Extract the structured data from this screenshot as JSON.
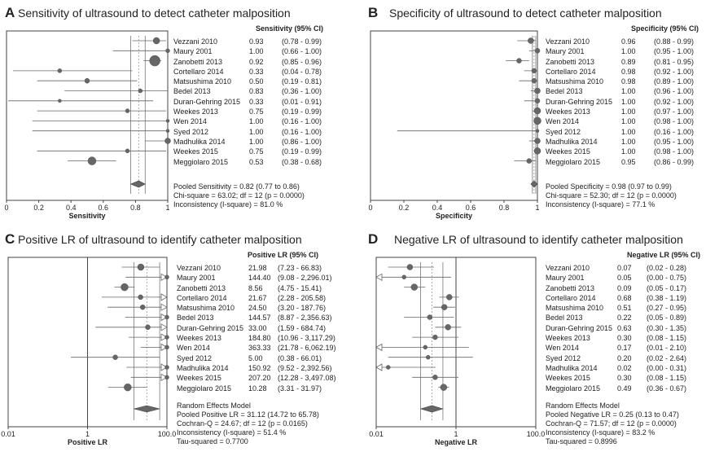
{
  "chart_data": [
    {
      "type": "forest",
      "letter": "A",
      "title": "Sensitivity of ultrasound to detect catheter malposition",
      "scale": "linear",
      "xlim": [
        0,
        1
      ],
      "xticks": [
        "0",
        "0.2",
        "0.4",
        "0.6",
        "0.8",
        "1"
      ],
      "xlabel": "Sensitivity",
      "column_header": "Sensitivity (95% CI)",
      "studies": [
        {
          "name": "Vezzani 2010",
          "value": 0.93,
          "lo": 0.78,
          "hi": 0.99,
          "est": "0.93",
          "ci": "(0.78 - 0.99)",
          "weight": 4
        },
        {
          "name": "Maury 2001",
          "value": 1.0,
          "lo": 0.66,
          "hi": 1.0,
          "est": "1.00",
          "ci": "(0.66 - 1.00)",
          "weight": 2.5
        },
        {
          "name": "Zanobetti 2013",
          "value": 0.92,
          "lo": 0.85,
          "hi": 0.96,
          "est": "0.92",
          "ci": "(0.85 - 0.96)",
          "weight": 6.5
        },
        {
          "name": "Cortellaro 2014",
          "value": 0.33,
          "lo": 0.04,
          "hi": 0.78,
          "est": "0.33",
          "ci": "(0.04 - 0.78)",
          "weight": 2.5
        },
        {
          "name": "Matsushima 2010",
          "value": 0.5,
          "lo": 0.19,
          "hi": 0.81,
          "est": "0.50",
          "ci": "(0.19 - 0.81)",
          "weight": 3
        },
        {
          "name": "Bedel 2013",
          "value": 0.83,
          "lo": 0.36,
          "hi": 1.0,
          "est": "0.83",
          "ci": "(0.36 - 1.00)",
          "weight": 2.5
        },
        {
          "name": "Duran-Gehring 2015",
          "value": 0.33,
          "lo": 0.01,
          "hi": 0.91,
          "est": "0.33",
          "ci": "(0.01 - 0.91)",
          "weight": 2
        },
        {
          "name": "Weekes 2013",
          "value": 0.75,
          "lo": 0.19,
          "hi": 0.99,
          "est": "0.75",
          "ci": "(0.19 - 0.99)",
          "weight": 2.5
        },
        {
          "name": "Wen 2014",
          "value": 1.0,
          "lo": 0.16,
          "hi": 1.0,
          "est": "1.00",
          "ci": "(0.16 - 1.00)",
          "weight": 2
        },
        {
          "name": "Syed 2012",
          "value": 1.0,
          "lo": 0.16,
          "hi": 1.0,
          "est": "1.00",
          "ci": "(0.16 - 1.00)",
          "weight": 2
        },
        {
          "name": "Madhulika 2014",
          "value": 1.0,
          "lo": 0.86,
          "hi": 1.0,
          "est": "1.00",
          "ci": "(0.86 - 1.00)",
          "weight": 3.5
        },
        {
          "name": "Weekes 2015",
          "value": 0.75,
          "lo": 0.19,
          "hi": 0.99,
          "est": "0.75",
          "ci": "(0.19 - 0.99)",
          "weight": 2.5
        },
        {
          "name": "Meggiolaro 2015",
          "value": 0.53,
          "lo": 0.38,
          "hi": 0.68,
          "est": "0.53",
          "ci": "(0.38 - 0.68)",
          "weight": 5
        }
      ],
      "pooled": {
        "value": 0.82,
        "lo": 0.77,
        "hi": 0.86
      },
      "stats_lines": [
        "Pooled Sensitivity = 0.82 (0.77 to 0.86)",
        "Chi-square = 63.02; df = 12 (p = 0.0000)",
        "Inconsistency (I-square) = 81.0 %"
      ]
    },
    {
      "type": "forest",
      "letter": "B",
      "title": "Specificity of ultrasound to detect catheter malposition",
      "scale": "linear",
      "xlim": [
        0,
        1
      ],
      "xticks": [
        "0",
        "0.2",
        "0.4",
        "0.6",
        "0.8",
        "1"
      ],
      "xlabel": "Specificity",
      "column_header": "Specificity (95% CI)",
      "studies": [
        {
          "name": "Vezzani 2010",
          "value": 0.96,
          "lo": 0.88,
          "hi": 0.99,
          "est": "0.96",
          "ci": "(0.88 - 0.99)",
          "weight": 3.5
        },
        {
          "name": "Maury 2001",
          "value": 1.0,
          "lo": 0.95,
          "hi": 1.0,
          "est": "1.00",
          "ci": "(0.95 - 1.00)",
          "weight": 3
        },
        {
          "name": "Zanobetti 2013",
          "value": 0.89,
          "lo": 0.81,
          "hi": 0.95,
          "est": "0.89",
          "ci": "(0.81 - 0.95)",
          "weight": 3
        },
        {
          "name": "Cortellaro 2014",
          "value": 0.98,
          "lo": 0.92,
          "hi": 1.0,
          "est": "0.98",
          "ci": "(0.92 - 1.00)",
          "weight": 3
        },
        {
          "name": "Matsushima 2010",
          "value": 0.98,
          "lo": 0.89,
          "hi": 1.0,
          "est": "0.98",
          "ci": "(0.89 - 1.00)",
          "weight": 3
        },
        {
          "name": "Bedel 2013",
          "value": 1.0,
          "lo": 0.96,
          "hi": 1.0,
          "est": "1.00",
          "ci": "(0.96 - 1.00)",
          "weight": 3.5
        },
        {
          "name": "Duran-Gehring 2015",
          "value": 1.0,
          "lo": 0.92,
          "hi": 1.0,
          "est": "1.00",
          "ci": "(0.92 - 1.00)",
          "weight": 3
        },
        {
          "name": "Weekes 2013",
          "value": 1.0,
          "lo": 0.97,
          "hi": 1.0,
          "est": "1.00",
          "ci": "(0.97 - 1.00)",
          "weight": 4
        },
        {
          "name": "Wen 2014",
          "value": 1.0,
          "lo": 0.98,
          "hi": 1.0,
          "est": "1.00",
          "ci": "(0.98 - 1.00)",
          "weight": 4.5
        },
        {
          "name": "Syed 2012",
          "value": 1.0,
          "lo": 0.16,
          "hi": 1.0,
          "est": "1.00",
          "ci": "(0.16 - 1.00)",
          "weight": 2
        },
        {
          "name": "Madhulika 2014",
          "value": 1.0,
          "lo": 0.95,
          "hi": 1.0,
          "est": "1.00",
          "ci": "(0.95 - 1.00)",
          "weight": 3.5
        },
        {
          "name": "Weekes 2015",
          "value": 1.0,
          "lo": 0.98,
          "hi": 1.0,
          "est": "1.00",
          "ci": "(0.98 - 1.00)",
          "weight": 4
        },
        {
          "name": "Meggiolaro 2015",
          "value": 0.95,
          "lo": 0.86,
          "hi": 0.99,
          "est": "0.95",
          "ci": "(0.86 - 0.99)",
          "weight": 3
        }
      ],
      "pooled": {
        "value": 0.98,
        "lo": 0.97,
        "hi": 0.99
      },
      "stats_lines": [
        "Pooled Specificity = 0.98 (0.97 to 0.99)",
        "Chi-square = 52.30; df = 12 (p = 0.0000)",
        "Inconsistency (I-square) = 77.1 %"
      ]
    },
    {
      "type": "forest",
      "letter": "C",
      "title": "Positive LR of ultrasound to identify catheter malposition",
      "scale": "log",
      "xlim": [
        0.01,
        100
      ],
      "xticks": [
        "0.01",
        "1",
        "100.0"
      ],
      "xlabel": "Positive LR",
      "column_header": "Positive LR (95% CI)",
      "studies": [
        {
          "name": "Vezzani 2010",
          "value": 21.98,
          "lo": 7.23,
          "hi": 66.83,
          "est": "21.98",
          "ci": "(7.23 - 66.83)",
          "weight": 4
        },
        {
          "name": "Maury 2001",
          "value": 144.4,
          "lo": 9.08,
          "hi": 2296.01,
          "est": "144.40",
          "ci": "(9.08 - 2,296.01)",
          "weight": 2.5
        },
        {
          "name": "Zanobetti 2013",
          "value": 8.56,
          "lo": 4.75,
          "hi": 15.41,
          "est": "8.56",
          "ci": "(4.75 - 15.41)",
          "weight": 4.5
        },
        {
          "name": "Cortellaro 2014",
          "value": 21.67,
          "lo": 2.28,
          "hi": 205.58,
          "est": "21.67",
          "ci": "(2.28 - 205.58)",
          "weight": 3
        },
        {
          "name": "Matsushima 2010",
          "value": 24.5,
          "lo": 3.2,
          "hi": 187.76,
          "est": "24.50",
          "ci": "(3.20 - 187.76)",
          "weight": 3
        },
        {
          "name": "Bedel 2013",
          "value": 144.57,
          "lo": 8.87,
          "hi": 2356.63,
          "est": "144.57",
          "ci": "(8.87 - 2,356.63)",
          "weight": 2.5
        },
        {
          "name": "Duran-Gehring 2015",
          "value": 33.0,
          "lo": 1.59,
          "hi": 684.74,
          "est": "33.00",
          "ci": "(1.59 - 684.74)",
          "weight": 3
        },
        {
          "name": "Weekes 2013",
          "value": 184.8,
          "lo": 10.96,
          "hi": 3117.29,
          "est": "184.80",
          "ci": "(10.96 - 3,117.29)",
          "weight": 2.5
        },
        {
          "name": "Wen 2014",
          "value": 363.33,
          "lo": 21.78,
          "hi": 6062.19,
          "est": "363.33",
          "ci": "(21.78 - 6,062.19)",
          "weight": 2.5
        },
        {
          "name": "Syed 2012",
          "value": 5.0,
          "lo": 0.38,
          "hi": 66.01,
          "est": "5.00",
          "ci": "(0.38 - 66.01)",
          "weight": 3
        },
        {
          "name": "Madhulika 2014",
          "value": 150.92,
          "lo": 9.52,
          "hi": 2392.56,
          "est": "150.92",
          "ci": "(9.52 - 2,392.56)",
          "weight": 2.5
        },
        {
          "name": "Weekes 2015",
          "value": 207.2,
          "lo": 12.28,
          "hi": 3497.08,
          "est": "207.20",
          "ci": "(12.28 - 3,497.08)",
          "weight": 2.5
        },
        {
          "name": "Meggiolaro 2015",
          "value": 10.28,
          "lo": 3.31,
          "hi": 31.97,
          "est": "10.28",
          "ci": "(3.31 - 31.97)",
          "weight": 4.5
        }
      ],
      "pooled": {
        "value": 31.12,
        "lo": 14.72,
        "hi": 65.78
      },
      "stats_lines": [
        "Random Effects Model",
        "Pooled Positive LR = 31.12 (14.72 to 65.78)",
        "Cochran-Q = 24.67; df = 12 (p = 0.0165)",
        "Inconsistency (I-square) = 51.4 %",
        "Tau-squared = 0.7700"
      ]
    },
    {
      "type": "forest",
      "letter": "D",
      "title": "Negative LR of ultrasound to identify catheter malposition",
      "scale": "log",
      "xlim": [
        0.01,
        100
      ],
      "xticks": [
        "0.01",
        "1",
        "100.0"
      ],
      "xlabel": "Negative LR",
      "column_header": "Negative LR (95% CI)",
      "studies": [
        {
          "name": "Vezzani 2010",
          "value": 0.07,
          "lo": 0.02,
          "hi": 0.28,
          "est": "0.07",
          "ci": "(0.02 - 0.28)",
          "weight": 3.5
        },
        {
          "name": "Maury 2001",
          "value": 0.05,
          "lo": 0.0,
          "hi": 0.75,
          "est": "0.05",
          "ci": "(0.00 - 0.75)",
          "weight": 2.5
        },
        {
          "name": "Zanobetti 2013",
          "value": 0.09,
          "lo": 0.05,
          "hi": 0.17,
          "est": "0.09",
          "ci": "(0.05 - 0.17)",
          "weight": 4
        },
        {
          "name": "Cortellaro 2014",
          "value": 0.68,
          "lo": 0.38,
          "hi": 1.19,
          "est": "0.68",
          "ci": "(0.38 - 1.19)",
          "weight": 3.5
        },
        {
          "name": "Matsushima 2010",
          "value": 0.51,
          "lo": 0.27,
          "hi": 0.95,
          "est": "0.51",
          "ci": "(0.27 - 0.95)",
          "weight": 3.5
        },
        {
          "name": "Bedel 2013",
          "value": 0.22,
          "lo": 0.05,
          "hi": 0.89,
          "est": "0.22",
          "ci": "(0.05 - 0.89)",
          "weight": 3
        },
        {
          "name": "Duran-Gehring 2015",
          "value": 0.63,
          "lo": 0.3,
          "hi": 1.35,
          "est": "0.63",
          "ci": "(0.30 - 1.35)",
          "weight": 3.5
        },
        {
          "name": "Weekes 2013",
          "value": 0.3,
          "lo": 0.08,
          "hi": 1.15,
          "est": "0.30",
          "ci": "(0.08 - 1.15)",
          "weight": 3
        },
        {
          "name": "Wen 2014",
          "value": 0.17,
          "lo": 0.01,
          "hi": 2.1,
          "est": "0.17",
          "ci": "(0.01 - 2.10)",
          "weight": 2.5
        },
        {
          "name": "Syed 2012",
          "value": 0.2,
          "lo": 0.02,
          "hi": 2.64,
          "est": "0.20",
          "ci": "(0.02 - 2.64)",
          "weight": 2.5
        },
        {
          "name": "Madhulika 2014",
          "value": 0.02,
          "lo": 0.0,
          "hi": 0.31,
          "est": "0.02",
          "ci": "(0.00 - 0.31)",
          "weight": 2.5
        },
        {
          "name": "Weekes 2015",
          "value": 0.3,
          "lo": 0.08,
          "hi": 1.15,
          "est": "0.30",
          "ci": "(0.08 - 1.15)",
          "weight": 3
        },
        {
          "name": "Meggiolaro 2015",
          "value": 0.49,
          "lo": 0.36,
          "hi": 0.67,
          "est": "0.49",
          "ci": "(0.36 - 0.67)",
          "weight": 4
        }
      ],
      "pooled": {
        "value": 0.25,
        "lo": 0.13,
        "hi": 0.47
      },
      "stats_lines": [
        "Random Effects Model",
        "Pooled Negative LR = 0.25 (0.13 to 0.47)",
        "Cochran-Q = 71.57; df = 12 (p = 0.0000)",
        "Inconsistency (I-square) = 83.2 %",
        "Tau-squared = 0.8996"
      ]
    }
  ]
}
